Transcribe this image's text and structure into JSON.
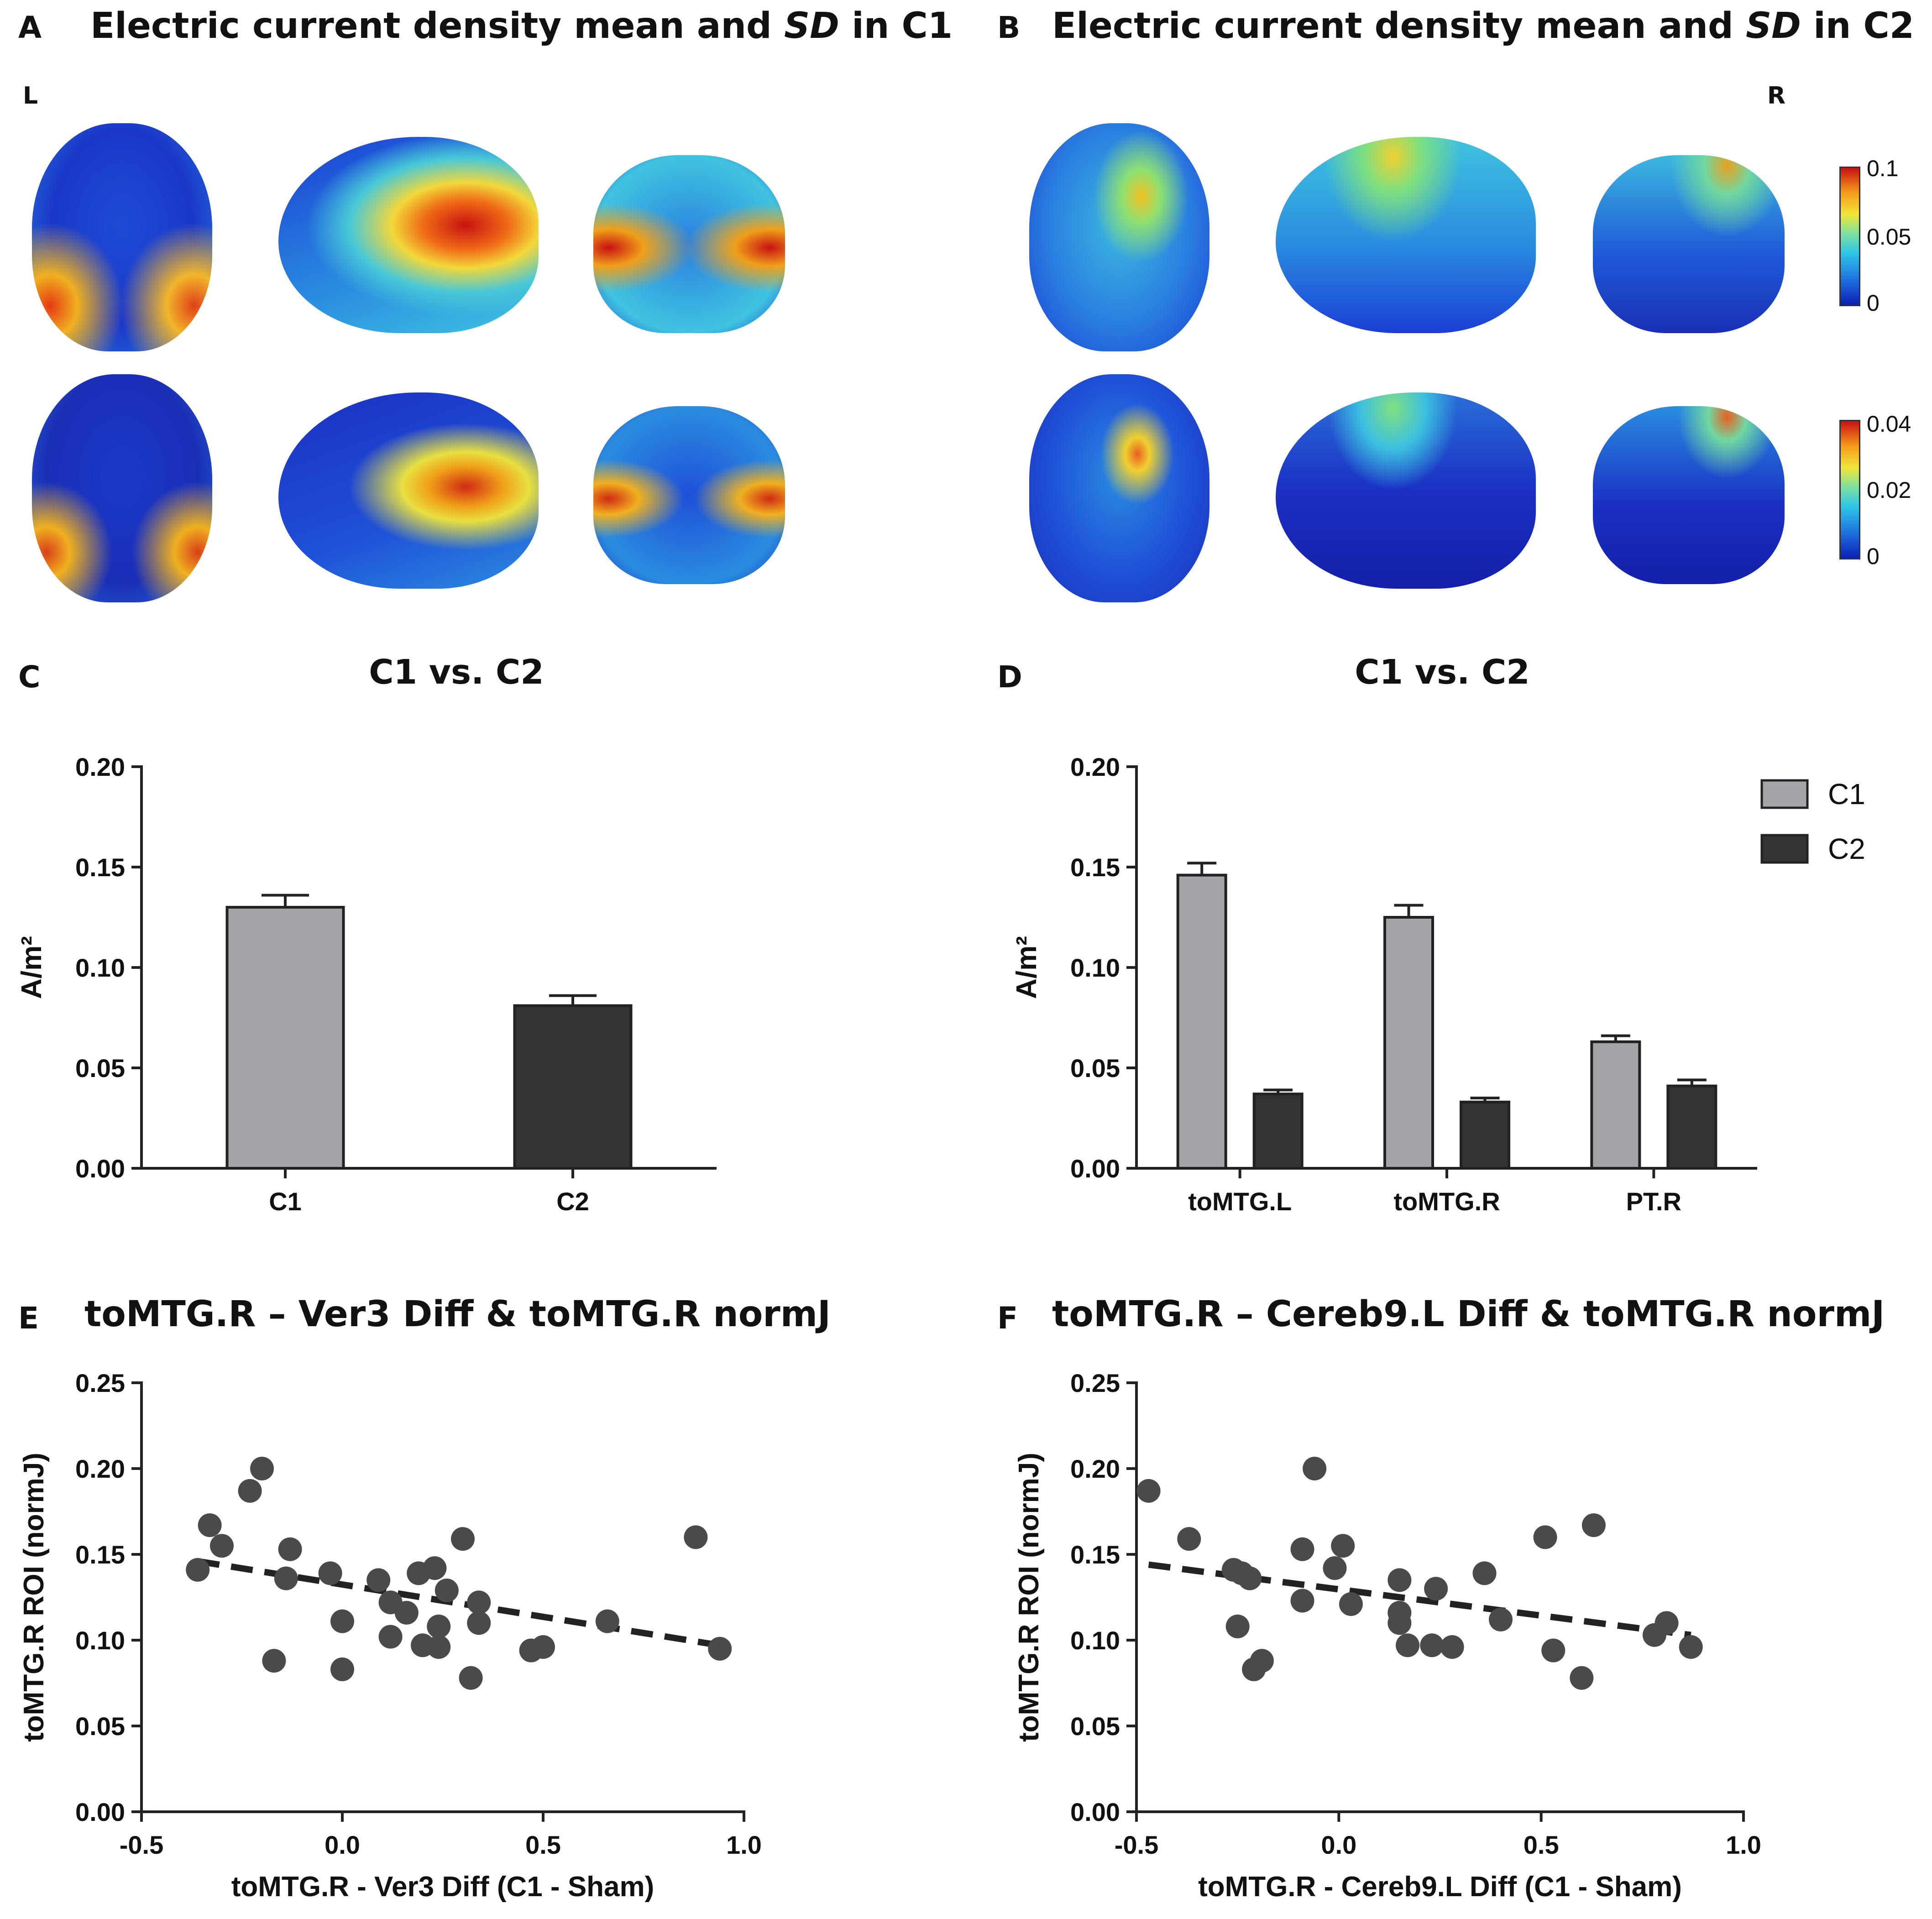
{
  "panels": {
    "a": {
      "letter": "A",
      "title_pre": "Electric current density mean and ",
      "title_em": "SD",
      "title_post": " in C1"
    },
    "b": {
      "letter": "B",
      "title_pre": "Electric current density mean and ",
      "title_em": "SD",
      "title_post": " in C2"
    },
    "c": {
      "letter": "C",
      "title": "C1 vs. C2"
    },
    "d": {
      "letter": "D",
      "title": "C1 vs. C2"
    },
    "e": {
      "letter": "E",
      "title": "toMTG.R – Ver3 Diff & toMTG.R normJ"
    },
    "f": {
      "letter": "F",
      "title": "toMTG.R – Cereb9.L Diff & toMTG.R normJ"
    }
  },
  "hemisphere": {
    "left": "L",
    "right": "R"
  },
  "colorbars": [
    {
      "max": "0.1",
      "mid": "0.05",
      "min": "0"
    },
    {
      "max": "0.04",
      "mid": "0.02",
      "min": "0"
    }
  ],
  "colors": {
    "c1_bar": "#a3a3a8",
    "c2_bar": "#333333",
    "point": "#4a4a4a"
  },
  "chart_data": [
    {
      "id": "chartC",
      "type": "bar",
      "title": "C1 vs. C2",
      "ylabel": "A/m²",
      "ylim": [
        0,
        0.2
      ],
      "yticks": [
        "0.00",
        "0.05",
        "0.10",
        "0.15",
        "0.20"
      ],
      "categories": [
        "C1",
        "C2"
      ],
      "values": [
        0.13,
        0.081
      ],
      "errors": [
        0.006,
        0.005
      ],
      "bar_colors": [
        "#a3a3a8",
        "#333333"
      ]
    },
    {
      "id": "chartD",
      "type": "bar",
      "title": "C1 vs. C2",
      "ylabel": "A/m²",
      "ylim": [
        0,
        0.2
      ],
      "yticks": [
        "0.00",
        "0.05",
        "0.10",
        "0.15",
        "0.20"
      ],
      "categories": [
        "toMTG.L",
        "toMTG.R",
        "PT.R"
      ],
      "series": [
        {
          "name": "C1",
          "color": "#a3a3a8",
          "values": [
            0.146,
            0.125,
            0.063
          ],
          "errors": [
            0.006,
            0.006,
            0.003
          ]
        },
        {
          "name": "C2",
          "color": "#333333",
          "values": [
            0.037,
            0.033,
            0.041
          ],
          "errors": [
            0.002,
            0.002,
            0.003
          ]
        }
      ],
      "legend": "top-right"
    },
    {
      "id": "chartE",
      "type": "scatter",
      "title": "toMTG.R – Ver3 Diff & toMTG.R normJ",
      "xlabel": "toMTG.R - Ver3 Diff (C1 - Sham)",
      "ylabel": "toMTG.R ROI (normJ)",
      "xlim": [
        -0.5,
        1.0
      ],
      "ylim": [
        0,
        0.25
      ],
      "xticks": [
        "-0.5",
        "0.0",
        "0.5",
        "1.0"
      ],
      "yticks": [
        "0.00",
        "0.05",
        "0.10",
        "0.15",
        "0.20",
        "0.25"
      ],
      "points": [
        [
          -0.36,
          0.141
        ],
        [
          -0.33,
          0.167
        ],
        [
          -0.3,
          0.155
        ],
        [
          -0.23,
          0.187
        ],
        [
          -0.2,
          0.2
        ],
        [
          -0.17,
          0.088
        ],
        [
          -0.14,
          0.136
        ],
        [
          -0.13,
          0.153
        ],
        [
          -0.03,
          0.139
        ],
        [
          0.0,
          0.111
        ],
        [
          0.0,
          0.083
        ],
        [
          0.09,
          0.135
        ],
        [
          0.12,
          0.122
        ],
        [
          0.12,
          0.102
        ],
        [
          0.16,
          0.116
        ],
        [
          0.19,
          0.139
        ],
        [
          0.2,
          0.097
        ],
        [
          0.23,
          0.142
        ],
        [
          0.24,
          0.108
        ],
        [
          0.24,
          0.096
        ],
        [
          0.26,
          0.129
        ],
        [
          0.3,
          0.159
        ],
        [
          0.32,
          0.078
        ],
        [
          0.34,
          0.122
        ],
        [
          0.34,
          0.11
        ],
        [
          0.47,
          0.094
        ],
        [
          0.5,
          0.096
        ],
        [
          0.66,
          0.111
        ],
        [
          0.88,
          0.16
        ],
        [
          0.94,
          0.095
        ]
      ],
      "trend": [
        [
          -0.36,
          0.146
        ],
        [
          0.94,
          0.097
        ]
      ]
    },
    {
      "id": "chartF",
      "type": "scatter",
      "title": "toMTG.R – Cereb9.L Diff & toMTG.R normJ",
      "xlabel": "toMTG.R - Cereb9.L Diff (C1 - Sham)",
      "ylabel": "toMTG.R ROI (normJ)",
      "xlim": [
        -0.5,
        1.0
      ],
      "ylim": [
        0,
        0.25
      ],
      "xticks": [
        "-0.5",
        "0.0",
        "0.5",
        "1.0"
      ],
      "yticks": [
        "0.00",
        "0.05",
        "0.10",
        "0.15",
        "0.20",
        "0.25"
      ],
      "points": [
        [
          -0.47,
          0.187
        ],
        [
          -0.37,
          0.159
        ],
        [
          -0.26,
          0.141
        ],
        [
          -0.24,
          0.139
        ],
        [
          -0.25,
          0.108
        ],
        [
          -0.22,
          0.136
        ],
        [
          -0.21,
          0.083
        ],
        [
          -0.19,
          0.088
        ],
        [
          -0.09,
          0.153
        ],
        [
          -0.09,
          0.123
        ],
        [
          -0.06,
          0.2
        ],
        [
          -0.01,
          0.142
        ],
        [
          0.01,
          0.155
        ],
        [
          0.03,
          0.121
        ],
        [
          0.15,
          0.135
        ],
        [
          0.15,
          0.116
        ],
        [
          0.15,
          0.11
        ],
        [
          0.17,
          0.097
        ],
        [
          0.23,
          0.097
        ],
        [
          0.24,
          0.13
        ],
        [
          0.28,
          0.096
        ],
        [
          0.36,
          0.139
        ],
        [
          0.4,
          0.112
        ],
        [
          0.51,
          0.16
        ],
        [
          0.53,
          0.094
        ],
        [
          0.6,
          0.078
        ],
        [
          0.63,
          0.167
        ],
        [
          0.78,
          0.103
        ],
        [
          0.81,
          0.11
        ],
        [
          0.87,
          0.096
        ]
      ],
      "trend": [
        [
          -0.47,
          0.144
        ],
        [
          0.87,
          0.103
        ]
      ]
    }
  ]
}
